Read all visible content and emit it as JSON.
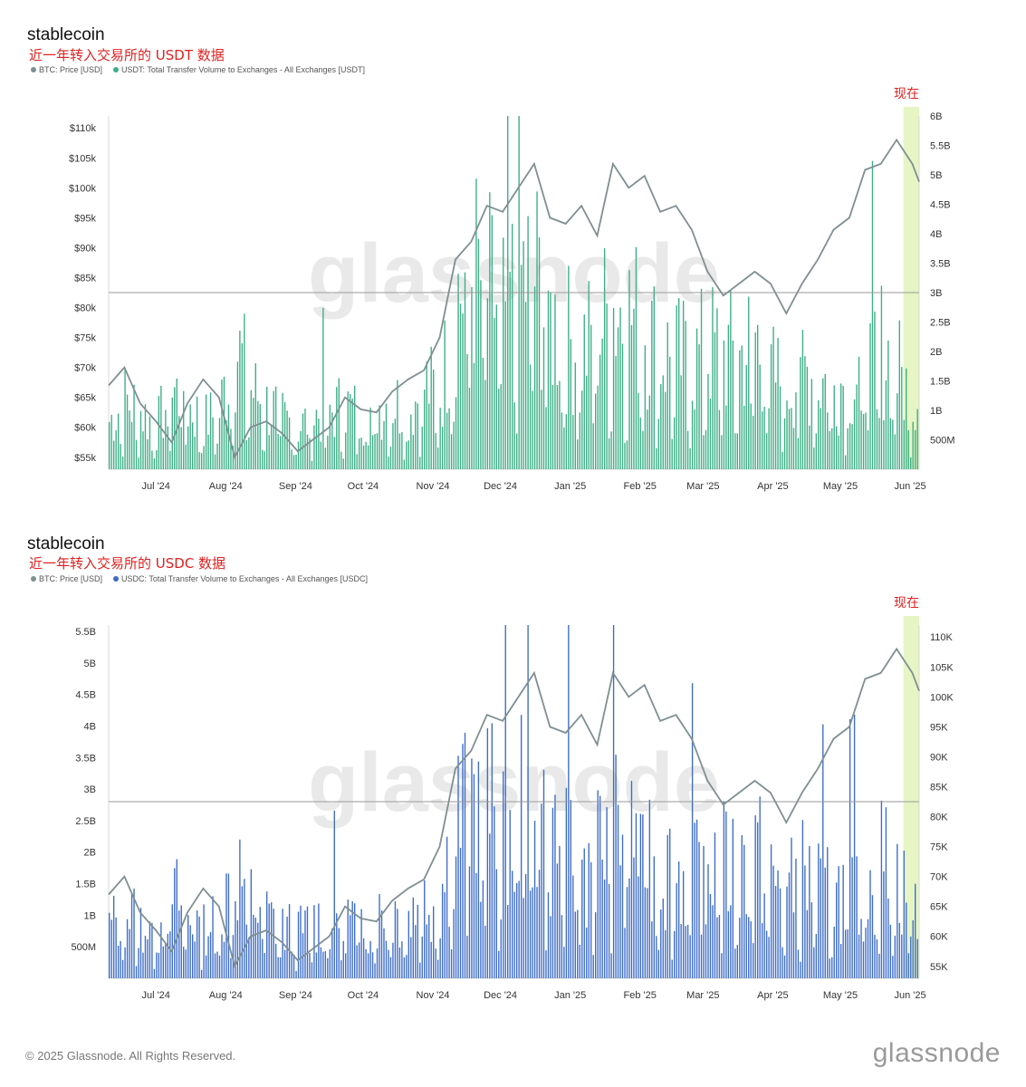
{
  "colors": {
    "btc_line": "#7f8f92",
    "usdt_bars": "#3cae86",
    "usdc_bars": "#3d6cc7",
    "now_band": "#e6f5c3",
    "red_text": "#e02020"
  },
  "footer": {
    "copyright": "© 2025 Glassnode. All Rights Reserved.",
    "logo": "glassnode"
  },
  "chart_data": [
    {
      "type": "bar",
      "title": "stablecoin",
      "subtitle": "近一年转入交易所的 USDT 数据",
      "now_label": "现在",
      "watermark": "glassnode",
      "legend": [
        "BTC: Price [USD]",
        "USDT: Total Transfer Volume to Exchanges - All Exchanges [USDT]"
      ],
      "x_ticks": [
        "Jul '24",
        "Aug '24",
        "Sep '24",
        "Oct '24",
        "Nov '24",
        "Dec '24",
        "Jan '25",
        "Feb '25",
        "Mar '25",
        "Apr '25",
        "May '25",
        "Jun '25"
      ],
      "left_axis": {
        "series": "BTC: Price [USD]",
        "ylim": [
          53000,
          112000
        ],
        "ticks": [
          55000,
          60000,
          65000,
          70000,
          75000,
          80000,
          85000,
          90000,
          95000,
          100000,
          105000,
          110000
        ],
        "labels": [
          "$55k",
          "$60k",
          "$65k",
          "$70k",
          "$75k",
          "$80k",
          "$85k",
          "$90k",
          "$95k",
          "$100k",
          "$105k",
          "$110k"
        ]
      },
      "right_axis": {
        "series": "USDT: Total Transfer Volume to Exchanges - All Exchanges [USDT]",
        "ylim": [
          0,
          6.0
        ],
        "unit": "B",
        "ticks": [
          0.5,
          1,
          1.5,
          2,
          2.5,
          3,
          3.5,
          4,
          4.5,
          5,
          5.5,
          6
        ],
        "labels": [
          "500M",
          "1B",
          "1.5B",
          "2B",
          "2.5B",
          "3B",
          "3.5B",
          "4B",
          "4.5B",
          "5B",
          "5.5B",
          "6B"
        ]
      },
      "reference_line": {
        "axis": "left",
        "value": 82500
      },
      "bar_axis": "right",
      "line_axis": "left"
    },
    {
      "type": "bar",
      "title": "stablecoin",
      "subtitle": "近一年转入交易所的 USDC 数据",
      "now_label": "现在",
      "watermark": "glassnode",
      "legend": [
        "BTC: Price [USD]",
        "USDC: Total Transfer Volume to Exchanges - All Exchanges [USDC]"
      ],
      "x_ticks": [
        "Jul '24",
        "Aug '24",
        "Sep '24",
        "Oct '24",
        "Nov '24",
        "Dec '24",
        "Jan '25",
        "Feb '25",
        "Mar '25",
        "Apr '25",
        "May '25",
        "Jun '25"
      ],
      "left_axis": {
        "series": "USDC: Total Transfer Volume to Exchanges - All Exchanges [USDC]",
        "ylim": [
          0,
          5.6
        ],
        "unit": "B",
        "ticks": [
          0.5,
          1,
          1.5,
          2,
          2.5,
          3,
          3.5,
          4,
          4.5,
          5,
          5.5
        ],
        "labels": [
          "500M",
          "1B",
          "1.5B",
          "2B",
          "2.5B",
          "3B",
          "3.5B",
          "4B",
          "4.5B",
          "5B",
          "5.5B"
        ]
      },
      "right_axis": {
        "series": "BTC: Price [USD]",
        "ylim": [
          53000,
          112000
        ],
        "ticks": [
          55000,
          60000,
          65000,
          70000,
          75000,
          80000,
          85000,
          90000,
          95000,
          100000,
          105000,
          110000
        ],
        "labels": [
          "55K",
          "60K",
          "65K",
          "70K",
          "75K",
          "80K",
          "85K",
          "90K",
          "95K",
          "100K",
          "105K",
          "110K"
        ]
      },
      "reference_line": {
        "axis": "right",
        "value": 82500
      },
      "bar_axis": "left",
      "line_axis": "right"
    }
  ],
  "btc_price": {
    "x": [
      "2024-06-10",
      "2024-06-17",
      "2024-06-24",
      "2024-07-01",
      "2024-07-08",
      "2024-07-15",
      "2024-07-22",
      "2024-07-29",
      "2024-08-05",
      "2024-08-12",
      "2024-08-19",
      "2024-08-26",
      "2024-09-02",
      "2024-09-09",
      "2024-09-16",
      "2024-09-23",
      "2024-09-30",
      "2024-10-07",
      "2024-10-14",
      "2024-10-21",
      "2024-10-28",
      "2024-11-04",
      "2024-11-11",
      "2024-11-18",
      "2024-11-25",
      "2024-12-02",
      "2024-12-09",
      "2024-12-16",
      "2024-12-23",
      "2024-12-30",
      "2025-01-06",
      "2025-01-13",
      "2025-01-20",
      "2025-01-27",
      "2025-02-03",
      "2025-02-10",
      "2025-02-17",
      "2025-02-24",
      "2025-03-03",
      "2025-03-10",
      "2025-03-17",
      "2025-03-24",
      "2025-03-31",
      "2025-04-07",
      "2025-04-14",
      "2025-04-21",
      "2025-04-28",
      "2025-05-05",
      "2025-05-12",
      "2025-05-19",
      "2025-05-26",
      "2025-06-02",
      "2025-06-05"
    ],
    "values": [
      67000,
      70000,
      64000,
      61000,
      57500,
      64000,
      68000,
      65000,
      55000,
      60000,
      61000,
      59000,
      56000,
      58000,
      60000,
      65000,
      63000,
      62500,
      66000,
      68000,
      69500,
      75000,
      88000,
      91000,
      97000,
      96000,
      100000,
      104000,
      95000,
      94000,
      97000,
      92000,
      104000,
      100000,
      102000,
      96000,
      97000,
      93000,
      86000,
      82000,
      84000,
      86000,
      84000,
      79000,
      84000,
      88000,
      93000,
      95000,
      103000,
      104000,
      108000,
      104000,
      101000
    ]
  },
  "usdt_volume_b": [
    0.9,
    1.3,
    1.1,
    0.8,
    1.5,
    1.2,
    0.9,
    1.1,
    2.4,
    1.5,
    1.2,
    1.0,
    0.8,
    1.0,
    1.1,
    1.2,
    1.0,
    1.2,
    1.3,
    1.1,
    1.6,
    1.4,
    3.2,
    3.8,
    3.4,
    2.9,
    3.6,
    3.7,
    2.8,
    2.5,
    2.2,
    2.6,
    3.1,
    2.9,
    2.7,
    2.2,
    2.1,
    2.0,
    2.3,
    2.2,
    2.1,
    2.5,
    1.8,
    1.6,
    1.9,
    1.7,
    1.6,
    1.7,
    1.8,
    2.3,
    1.9,
    1.3,
    1.8
  ],
  "usdc_volume_b": [
    0.9,
    1.2,
    1.0,
    0.8,
    1.5,
    1.1,
    0.9,
    1.0,
    2.0,
    1.4,
    1.1,
    0.9,
    0.8,
    1.0,
    1.0,
    1.1,
    1.0,
    1.1,
    1.2,
    1.1,
    1.5,
    1.4,
    2.8,
    3.2,
    3.0,
    2.6,
    3.1,
    3.2,
    2.5,
    2.2,
    2.0,
    2.3,
    2.9,
    2.6,
    2.5,
    2.0,
    1.9,
    1.8,
    2.1,
    2.0,
    1.9,
    2.2,
    1.7,
    1.5,
    1.8,
    1.6,
    1.5,
    1.6,
    1.7,
    2.1,
    1.8,
    1.2,
    1.7
  ]
}
